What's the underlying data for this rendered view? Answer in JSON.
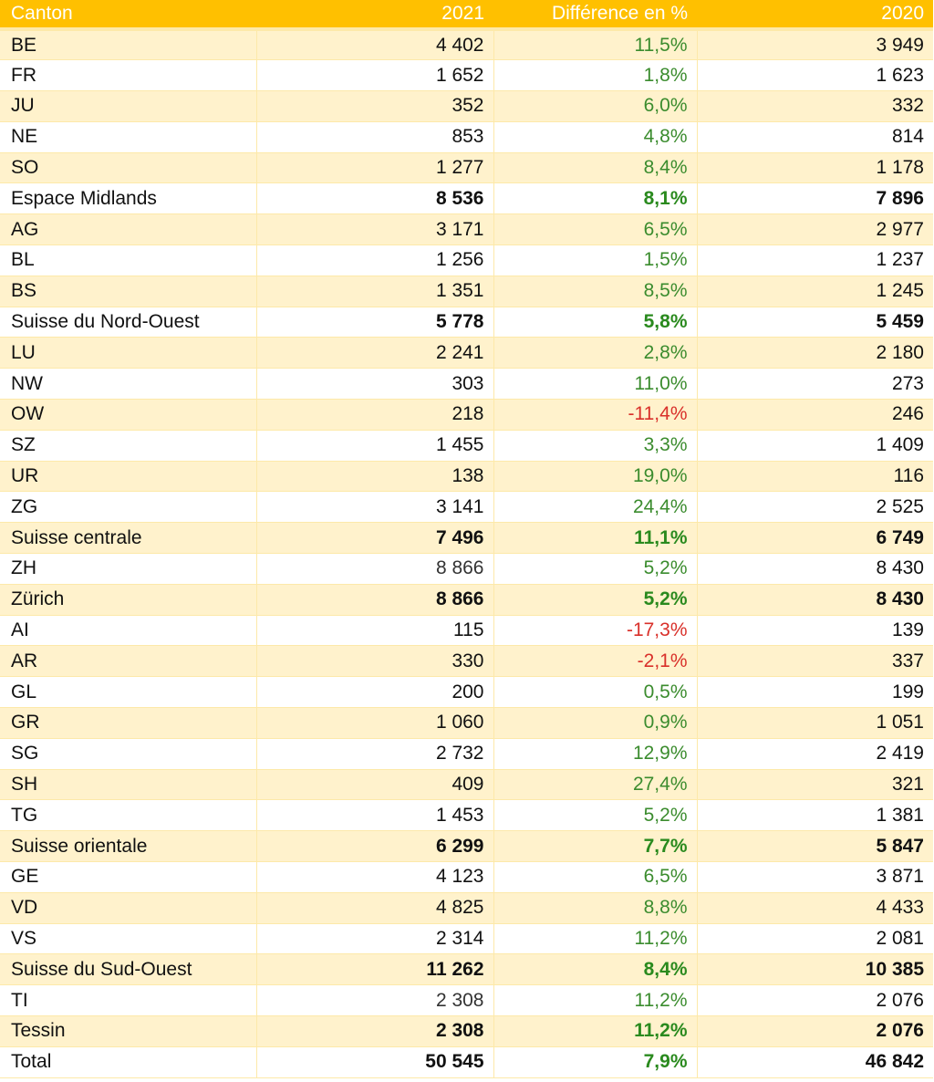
{
  "table": {
    "headers": {
      "canton": "Canton",
      "y2021": "2021",
      "diff": "Différence en %",
      "y2020": "2020"
    },
    "rows": [
      {
        "canton": "BE",
        "v2021": "4 402",
        "diff": "11,5%",
        "v2020": "3 949",
        "type": "canton",
        "negative": false
      },
      {
        "canton": "FR",
        "v2021": "1 652",
        "diff": "1,8%",
        "v2020": "1 623",
        "type": "canton",
        "negative": false
      },
      {
        "canton": "JU",
        "v2021": "352",
        "diff": "6,0%",
        "v2020": "332",
        "type": "canton",
        "negative": false
      },
      {
        "canton": "NE",
        "v2021": "853",
        "diff": "4,8%",
        "v2020": "814",
        "type": "canton",
        "negative": false
      },
      {
        "canton": "SO",
        "v2021": "1 277",
        "diff": "8,4%",
        "v2020": "1 178",
        "type": "canton",
        "negative": false
      },
      {
        "canton": "Espace Midlands",
        "v2021": "8 536",
        "diff": "8,1%",
        "v2020": "7 896",
        "type": "region",
        "negative": false
      },
      {
        "canton": "AG",
        "v2021": "3 171",
        "diff": "6,5%",
        "v2020": "2 977",
        "type": "canton",
        "negative": false
      },
      {
        "canton": "BL",
        "v2021": "1 256",
        "diff": "1,5%",
        "v2020": "1 237",
        "type": "canton",
        "negative": false
      },
      {
        "canton": "BS",
        "v2021": "1 351",
        "diff": "8,5%",
        "v2020": "1 245",
        "type": "canton",
        "negative": false
      },
      {
        "canton": "Suisse du Nord-Ouest",
        "v2021": "5 778",
        "diff": "5,8%",
        "v2020": "5 459",
        "type": "region",
        "negative": false
      },
      {
        "canton": "LU",
        "v2021": "2 241",
        "diff": "2,8%",
        "v2020": "2 180",
        "type": "canton",
        "negative": false
      },
      {
        "canton": "NW",
        "v2021": "303",
        "diff": "11,0%",
        "v2020": "273",
        "type": "canton",
        "negative": false
      },
      {
        "canton": "OW",
        "v2021": "218",
        "diff": "-11,4%",
        "v2020": "246",
        "type": "canton",
        "negative": true
      },
      {
        "canton": "SZ",
        "v2021": "1 455",
        "diff": "3,3%",
        "v2020": "1 409",
        "type": "canton",
        "negative": false
      },
      {
        "canton": "UR",
        "v2021": "138",
        "diff": "19,0%",
        "v2020": "116",
        "type": "canton",
        "negative": false
      },
      {
        "canton": "ZG",
        "v2021": "3 141",
        "diff": "24,4%",
        "v2020": "2 525",
        "type": "canton",
        "negative": false
      },
      {
        "canton": "Suisse centrale",
        "v2021": "7 496",
        "diff": "11,1%",
        "v2020": "6 749",
        "type": "region",
        "negative": false
      },
      {
        "canton": "ZH",
        "v2021": "8 866",
        "diff": "5,2%",
        "v2020": "8 430",
        "type": "canton-plain",
        "negative": false
      },
      {
        "canton": "Zürich",
        "v2021": "8 866",
        "diff": "5,2%",
        "v2020": "8 430",
        "type": "region",
        "negative": false
      },
      {
        "canton": "AI",
        "v2021": "115",
        "diff": "-17,3%",
        "v2020": "139",
        "type": "canton",
        "negative": true
      },
      {
        "canton": "AR",
        "v2021": "330",
        "diff": "-2,1%",
        "v2020": "337",
        "type": "canton",
        "negative": true
      },
      {
        "canton": "GL",
        "v2021": "200",
        "diff": "0,5%",
        "v2020": "199",
        "type": "canton",
        "negative": false
      },
      {
        "canton": "GR",
        "v2021": "1 060",
        "diff": "0,9%",
        "v2020": "1 051",
        "type": "canton",
        "negative": false
      },
      {
        "canton": "SG",
        "v2021": "2 732",
        "diff": "12,9%",
        "v2020": "2 419",
        "type": "canton",
        "negative": false
      },
      {
        "canton": "SH",
        "v2021": "409",
        "diff": "27,4%",
        "v2020": "321",
        "type": "canton",
        "negative": false
      },
      {
        "canton": "TG",
        "v2021": "1 453",
        "diff": "5,2%",
        "v2020": "1 381",
        "type": "canton",
        "negative": false
      },
      {
        "canton": "Suisse orientale",
        "v2021": "6 299",
        "diff": "7,7%",
        "v2020": "5 847",
        "type": "region",
        "negative": false
      },
      {
        "canton": "GE",
        "v2021": "4 123",
        "diff": "6,5%",
        "v2020": "3 871",
        "type": "canton",
        "negative": false
      },
      {
        "canton": "VD",
        "v2021": "4 825",
        "diff": "8,8%",
        "v2020": "4 433",
        "type": "canton",
        "negative": false
      },
      {
        "canton": "VS",
        "v2021": "2 314",
        "diff": "11,2%",
        "v2020": "2 081",
        "type": "canton",
        "negative": false
      },
      {
        "canton": "Suisse du Sud-Ouest",
        "v2021": "11 262",
        "diff": "8,4%",
        "v2020": "10 385",
        "type": "region",
        "negative": false
      },
      {
        "canton": "TI",
        "v2021": "2 308",
        "diff": "11,2%",
        "v2020": "2 076",
        "type": "canton-plain",
        "negative": false
      },
      {
        "canton": "Tessin",
        "v2021": "2 308",
        "diff": "11,2%",
        "v2020": "2 076",
        "type": "region",
        "negative": false
      },
      {
        "canton": "Total",
        "v2021": "50 545",
        "diff": "7,9%",
        "v2020": "46 842",
        "type": "region",
        "negative": false
      }
    ]
  },
  "colors": {
    "header_bg": "#ffc000",
    "band_bg": "#fff2cc",
    "positive": "#3b8c2e",
    "negative": "#d9302a"
  }
}
